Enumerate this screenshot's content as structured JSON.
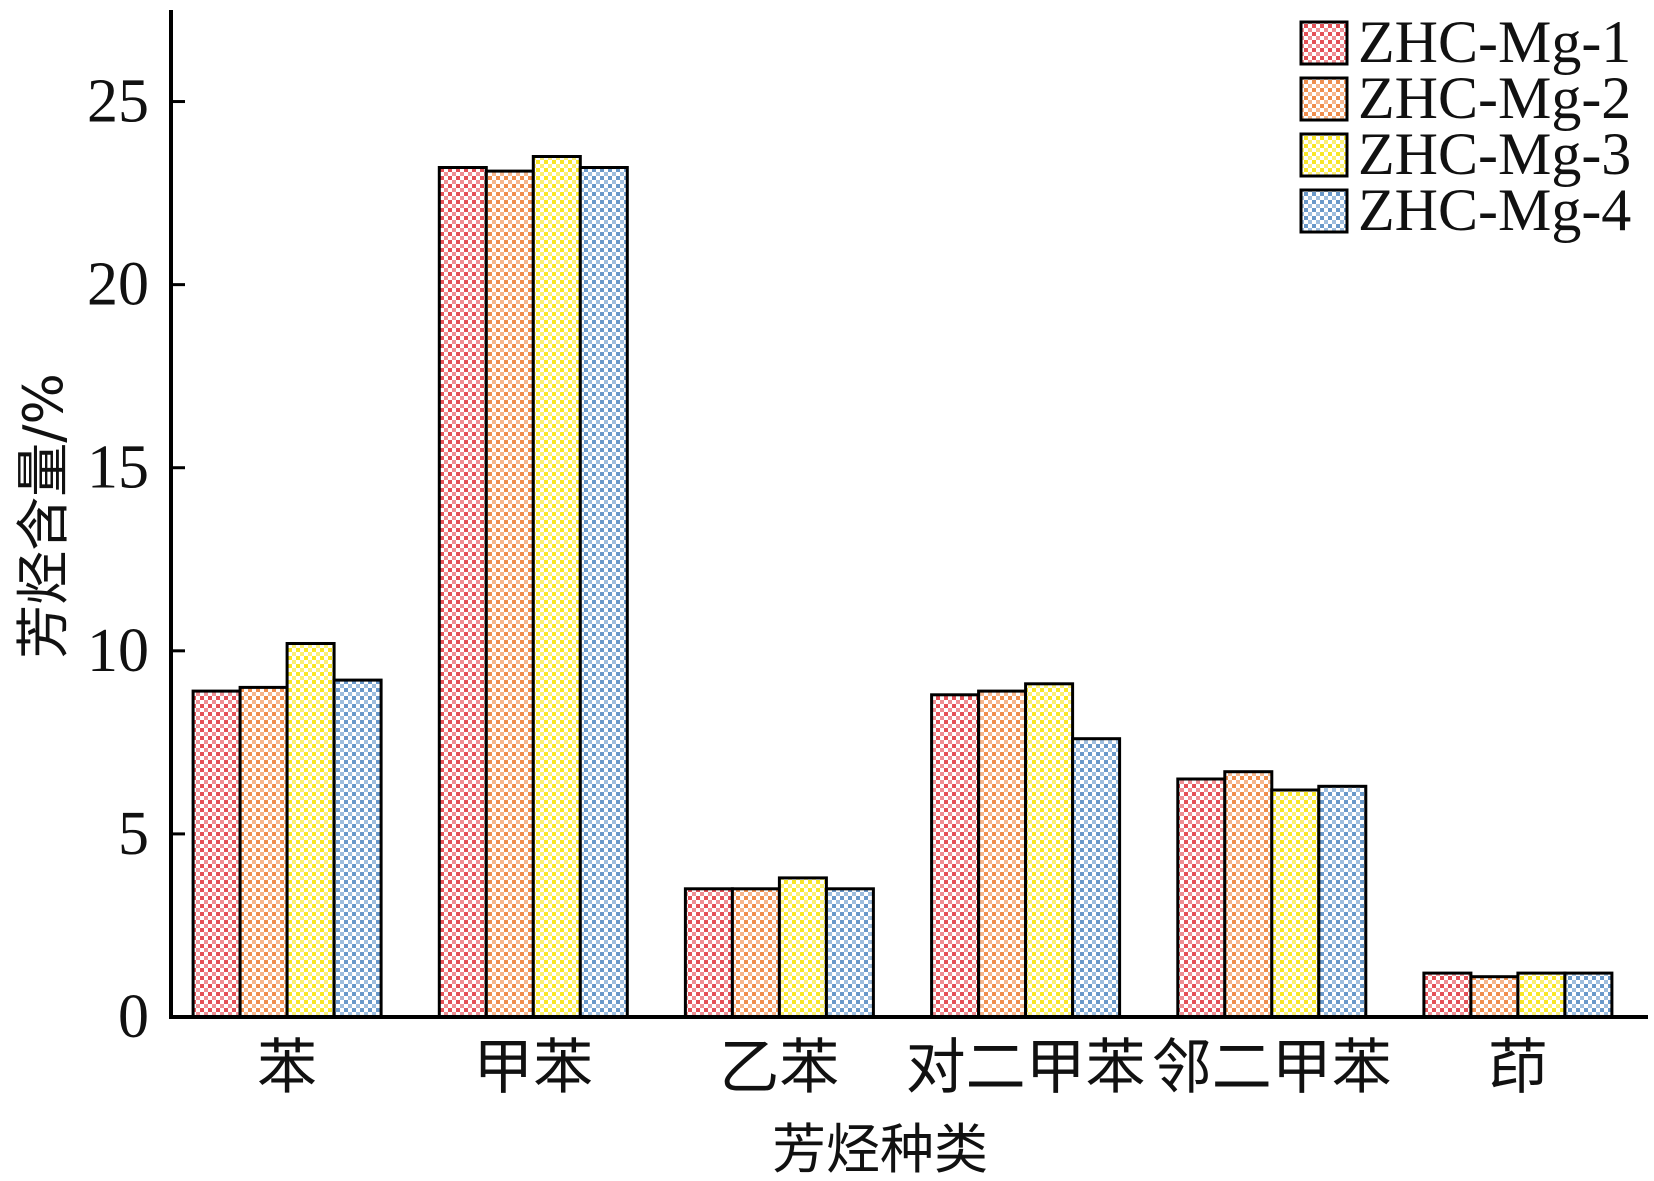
{
  "chart_data": {
    "type": "bar",
    "categories": [
      "苯",
      "甲苯",
      "乙苯",
      "对二甲苯",
      "邻二甲苯",
      "茚"
    ],
    "series": [
      {
        "name": "ZHC-Mg-1",
        "color": "#e0333a",
        "values": [
          8.9,
          23.2,
          3.5,
          8.8,
          6.5,
          1.2
        ]
      },
      {
        "name": "ZHC-Mg-2",
        "color": "#ee7a2e",
        "values": [
          9.0,
          23.1,
          3.5,
          8.9,
          6.7,
          1.1
        ]
      },
      {
        "name": "ZHC-Mg-3",
        "color": "#f7e200",
        "values": [
          10.2,
          23.5,
          3.8,
          9.1,
          6.2,
          1.2
        ]
      },
      {
        "name": "ZHC-Mg-4",
        "color": "#4f86c0",
        "values": [
          9.2,
          23.2,
          3.5,
          7.6,
          6.3,
          1.2
        ]
      }
    ],
    "xlabel": "芳烃种类",
    "ylabel": "芳烃含量/%",
    "ylim": [
      0,
      27.5
    ],
    "yticks": [
      0,
      5,
      10,
      15,
      20,
      25
    ],
    "grid": false,
    "legend": "top-right"
  }
}
